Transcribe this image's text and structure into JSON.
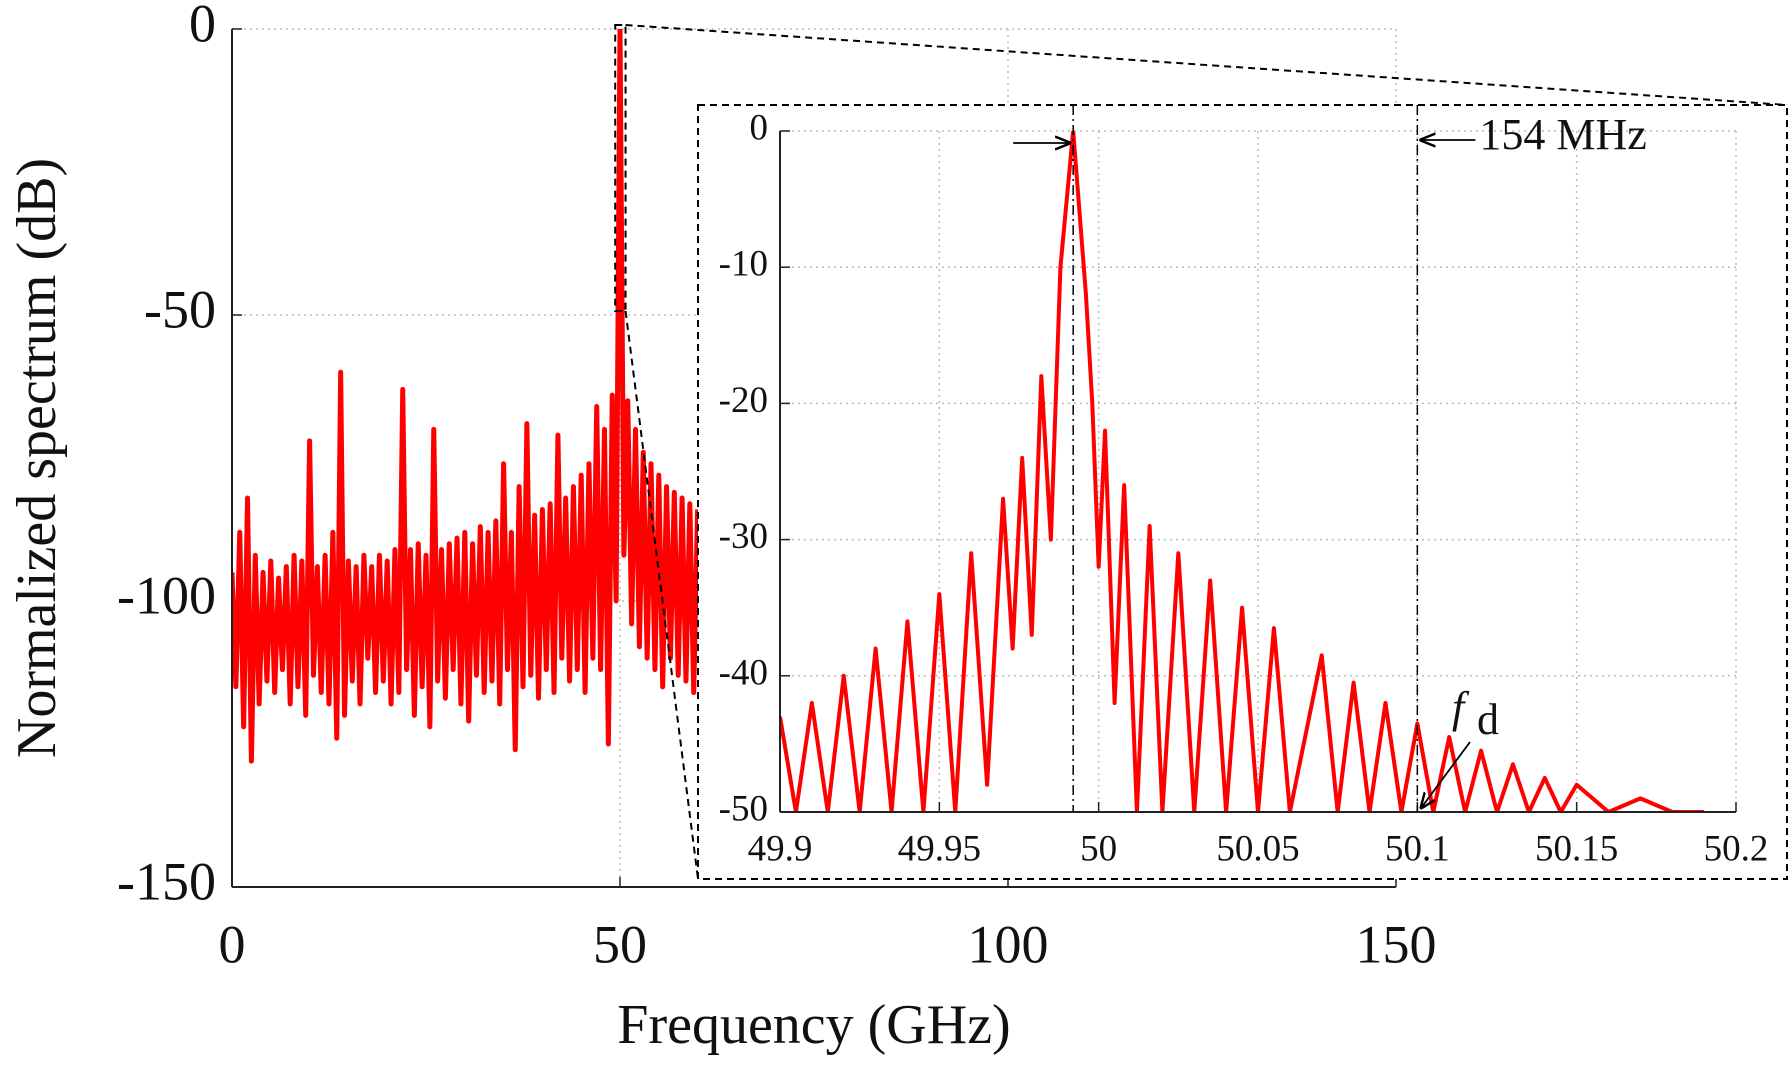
{
  "chart_data": [
    {
      "type": "line",
      "xlabel": "Frequency (GHz)",
      "ylabel": "Normalized spectrum (dB)",
      "xlim": [
        0,
        150
      ],
      "ylim": [
        -150,
        0
      ],
      "xticks": [
        0,
        50,
        100,
        150
      ],
      "yticks": [
        0,
        -50,
        -100,
        -150
      ],
      "grid": true,
      "color": "#ff0000",
      "x": [
        0,
        0.5,
        1,
        1.5,
        2,
        2.5,
        3,
        3.5,
        4,
        4.5,
        5,
        5.5,
        6,
        6.5,
        7,
        7.5,
        8,
        8.5,
        9,
        9.5,
        10,
        10.5,
        11,
        11.5,
        12,
        12.5,
        13,
        13.5,
        14,
        14.5,
        15,
        15.5,
        16,
        16.5,
        17,
        17.5,
        18,
        18.5,
        19,
        19.5,
        20,
        20.5,
        21,
        21.5,
        22,
        22.5,
        23,
        23.5,
        24,
        24.5,
        25,
        25.5,
        26,
        26.5,
        27,
        27.5,
        28,
        28.5,
        29,
        29.5,
        30,
        30.5,
        31,
        31.5,
        32,
        32.5,
        33,
        33.5,
        34,
        34.5,
        35,
        35.5,
        36,
        36.5,
        37,
        37.5,
        38,
        38.5,
        39,
        39.5,
        40,
        40.5,
        41,
        41.5,
        42,
        42.5,
        43,
        43.5,
        44,
        44.5,
        45,
        45.5,
        46,
        46.5,
        47,
        47.5,
        48,
        48.5,
        49,
        49.5,
        50,
        50.5,
        51,
        51.5,
        52,
        52.5,
        53,
        53.5,
        54,
        54.5,
        55,
        55.5,
        56,
        56.5,
        57,
        57.5,
        58,
        58.5,
        59,
        59.5,
        60
      ],
      "values": [
        -95,
        -115,
        -88,
        -122,
        -82,
        -128,
        -92,
        -118,
        -95,
        -114,
        -93,
        -116,
        -96,
        -112,
        -94,
        -118,
        -92,
        -115,
        -93,
        -120,
        -72,
        -113,
        -94,
        -116,
        -92,
        -118,
        -88,
        -124,
        -60,
        -120,
        -93,
        -114,
        -94,
        -118,
        -92,
        -110,
        -94,
        -116,
        -92,
        -114,
        -93,
        -118,
        -91,
        -116,
        -63,
        -112,
        -91,
        -120,
        -90,
        -115,
        -92,
        -122,
        -70,
        -114,
        -91,
        -117,
        -90,
        -112,
        -89,
        -118,
        -88,
        -121,
        -90,
        -113,
        -87,
        -116,
        -88,
        -114,
        -86,
        -118,
        -76,
        -112,
        -88,
        -126,
        -80,
        -115,
        -69,
        -113,
        -85,
        -117,
        -84,
        -112,
        -83,
        -116,
        -71,
        -110,
        -82,
        -114,
        -80,
        -112,
        -78,
        -116,
        -76,
        -110,
        -66,
        -112,
        -70,
        -125,
        -64,
        -100,
        0,
        -92,
        -65,
        -104,
        -70,
        -108,
        -74,
        -110,
        -76,
        -112,
        -78,
        -115,
        -80,
        -110,
        -81,
        -113,
        -82,
        -114,
        -83,
        -116,
        -84
      ]
    },
    {
      "type": "line",
      "xlim": [
        49.9,
        50.2
      ],
      "ylim": [
        -50,
        0
      ],
      "xticks": [
        49.9,
        49.95,
        50,
        50.05,
        50.1,
        50.15,
        50.2
      ],
      "yticks": [
        0,
        -10,
        -20,
        -30,
        -40,
        -50
      ],
      "grid": true,
      "color": "#ff0000",
      "x": [
        49.9,
        49.905,
        49.91,
        49.915,
        49.92,
        49.925,
        49.93,
        49.935,
        49.94,
        49.945,
        49.95,
        49.955,
        49.96,
        49.965,
        49.97,
        49.973,
        49.976,
        49.979,
        49.982,
        49.985,
        49.988,
        49.99,
        49.992,
        49.994,
        49.996,
        49.998,
        50.0,
        50.002,
        50.005,
        50.008,
        50.012,
        50.016,
        50.02,
        50.025,
        50.03,
        50.035,
        50.04,
        50.045,
        50.05,
        50.055,
        50.06,
        50.07,
        50.075,
        50.08,
        50.085,
        50.09,
        50.095,
        50.1,
        50.105,
        50.11,
        50.115,
        50.12,
        50.125,
        50.13,
        50.135,
        50.14,
        50.145,
        50.15,
        50.16,
        50.17,
        50.18,
        50.19
      ],
      "values": [
        -43,
        -50,
        -42,
        -50,
        -40,
        -50,
        -38,
        -50,
        -36,
        -50,
        -34,
        -50,
        -31,
        -48,
        -27,
        -38,
        -24,
        -37,
        -18,
        -30,
        -10,
        -5,
        0,
        -6,
        -12,
        -20,
        -32,
        -22,
        -42,
        -26,
        -50,
        -29,
        -50,
        -31,
        -50,
        -33,
        -50,
        -35,
        -50,
        -36.5,
        -50,
        -38.5,
        -50,
        -40.5,
        -50,
        -42,
        -50,
        -43.5,
        -50,
        -44.5,
        -50,
        -45.5,
        -50,
        -46.5,
        -50,
        -47.5,
        -50,
        -48,
        -50,
        -49,
        -50,
        -50
      ],
      "markers_x": [
        49.992,
        50.1
      ],
      "annotations": [
        "154 MHz",
        "f",
        "d"
      ]
    }
  ]
}
